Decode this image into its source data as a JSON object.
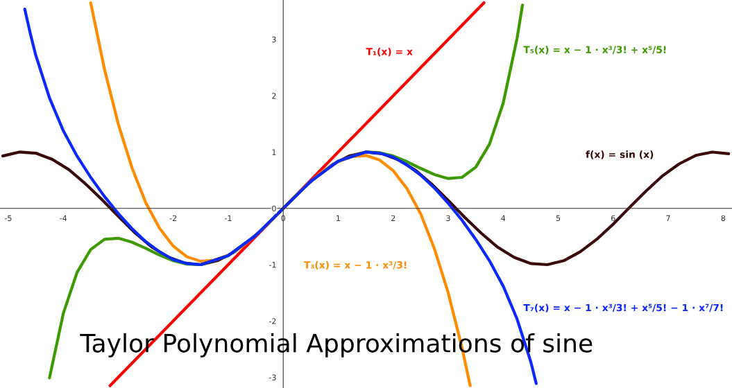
{
  "chart_data": {
    "type": "line",
    "title": "Taylor Polynomial Approximations of sine",
    "xlim": [
      -5.15,
      8.16
    ],
    "ylim": [
      -3.19,
      3.7
    ],
    "xticks": [
      -5,
      -4,
      -2,
      -1,
      0,
      1,
      2,
      3,
      4,
      5,
      6,
      7,
      8
    ],
    "yticks": [
      -3,
      -2,
      -1,
      0,
      1,
      2,
      3
    ],
    "grid": false,
    "legend": false,
    "marker": "none",
    "line_style": "solid",
    "series": [
      {
        "name": "f(x) = sin (x)",
        "color": "#3a0a0a",
        "x": [
          -5.1,
          -4.8,
          -4.5,
          -4.2,
          -3.9,
          -3.6,
          -3.3,
          -3.0,
          -2.7,
          -2.4,
          -2.1,
          -1.8,
          -1.5,
          -1.2,
          -0.9,
          -0.6,
          -0.3,
          0,
          0.3,
          0.6,
          0.9,
          1.2,
          1.5,
          1.8,
          2.1,
          2.4,
          2.7,
          3.0,
          3.3,
          3.6,
          3.9,
          4.2,
          4.5,
          4.8,
          5.1,
          5.4,
          5.7,
          6.0,
          6.3,
          6.6,
          6.9,
          7.2,
          7.5,
          7.8,
          8.1
        ],
        "values": [
          0.93,
          1.0,
          0.98,
          0.87,
          0.69,
          0.44,
          0.16,
          -0.14,
          -0.43,
          -0.68,
          -0.86,
          -0.97,
          -1.0,
          -0.93,
          -0.78,
          -0.56,
          -0.3,
          0,
          0.3,
          0.56,
          0.78,
          0.93,
          1.0,
          0.97,
          0.86,
          0.68,
          0.43,
          0.14,
          -0.16,
          -0.44,
          -0.69,
          -0.87,
          -0.98,
          -1.0,
          -0.93,
          -0.77,
          -0.55,
          -0.28,
          0.02,
          0.31,
          0.58,
          0.79,
          0.94,
          1.0,
          0.97
        ]
      },
      {
        "name": "T₁(x) = x",
        "color": "#ff0000",
        "x": [
          -3.15,
          0,
          3.65
        ],
        "values": [
          -3.15,
          0,
          3.65
        ]
      },
      {
        "name": "T₃(x) = x − 1 · x³/3!",
        "color": "#ff8c00",
        "x": [
          -3.5,
          -3.25,
          -3.0,
          -2.75,
          -2.5,
          -2.25,
          -2.0,
          -1.75,
          -1.5,
          -1.25,
          -1.0,
          -0.75,
          -0.5,
          -0.25,
          0,
          0.25,
          0.5,
          0.75,
          1.0,
          1.25,
          1.5,
          1.75,
          2.0,
          2.25,
          2.5,
          2.75,
          3.0,
          3.25,
          3.4
        ],
        "values": [
          3.65,
          2.47,
          1.5,
          0.72,
          0.1,
          -0.35,
          -0.67,
          -0.86,
          -0.94,
          -0.92,
          -0.83,
          -0.68,
          -0.48,
          -0.25,
          0,
          0.25,
          0.48,
          0.68,
          0.83,
          0.92,
          0.94,
          0.86,
          0.67,
          0.35,
          -0.1,
          -0.72,
          -1.5,
          -2.47,
          -3.15
        ]
      },
      {
        "name": "T₅(x) = x − 1 · x³/3! + x⁵/5!",
        "color": "#3c9a00",
        "x": [
          -4.25,
          -4.0,
          -3.75,
          -3.5,
          -3.25,
          -3.0,
          -2.75,
          -2.5,
          -2.25,
          -2.0,
          -1.75,
          -1.5,
          -1.0,
          -0.5,
          0,
          0.5,
          1.0,
          1.5,
          1.75,
          2.0,
          2.25,
          2.5,
          2.75,
          3.0,
          3.25,
          3.5,
          3.75,
          4.0,
          4.25,
          4.35
        ],
        "values": [
          -3.01,
          -1.87,
          -1.14,
          -0.73,
          -0.55,
          -0.53,
          -0.6,
          -0.71,
          -0.83,
          -0.93,
          -0.99,
          -1.0,
          -0.84,
          -0.48,
          0,
          0.48,
          0.84,
          1.0,
          0.99,
          0.93,
          0.83,
          0.71,
          0.6,
          0.53,
          0.55,
          0.73,
          1.14,
          1.87,
          3.01,
          3.61
        ]
      },
      {
        "name": "T₇(x) = x − 1 · x³/3! + x⁵/5! − 1 · x⁷/7!",
        "color": "#0a28ff",
        "x": [
          -4.7,
          -4.6,
          -4.5,
          -4.25,
          -4.0,
          -3.75,
          -3.5,
          -3.25,
          -3.0,
          -2.75,
          -2.5,
          -2.25,
          -2.0,
          -1.75,
          -1.5,
          -1.0,
          -0.5,
          0,
          0.5,
          1.0,
          1.5,
          1.75,
          2.0,
          2.25,
          2.5,
          2.75,
          3.0,
          3.25,
          3.5,
          3.75,
          4.0,
          4.25,
          4.5,
          4.6
        ],
        "values": [
          3.54,
          3.11,
          2.72,
          1.96,
          1.38,
          0.93,
          0.55,
          0.21,
          -0.09,
          -0.36,
          -0.59,
          -0.77,
          -0.91,
          -0.98,
          -1.0,
          -0.84,
          -0.48,
          0,
          0.48,
          0.84,
          1.0,
          0.98,
          0.91,
          0.77,
          0.59,
          0.36,
          0.09,
          -0.21,
          -0.55,
          -0.93,
          -1.38,
          -1.96,
          -2.72,
          -3.11
        ]
      }
    ]
  }
}
